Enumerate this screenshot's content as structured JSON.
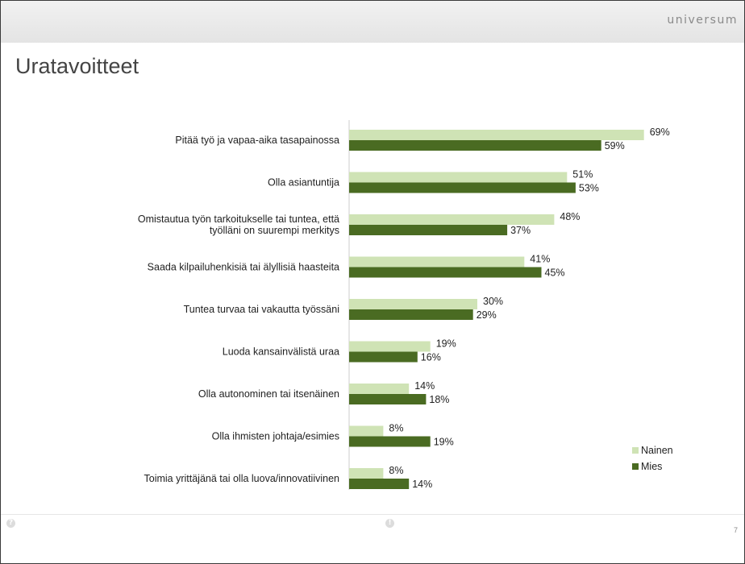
{
  "header": {
    "brand": "universum"
  },
  "slide": {
    "title": "Uratavoitteet",
    "page_number": "7"
  },
  "footer": {
    "left_icon": "help-icon",
    "center_icon": "info-icon"
  },
  "colors": {
    "nainen": "#cfe3b5",
    "mies": "#4a6b22",
    "axis": "#cccccc"
  },
  "chart_data": {
    "type": "bar",
    "orientation": "horizontal",
    "unit": "%",
    "categories": [
      [
        "Pitää työ ja vapaa-aika tasapainossa"
      ],
      [
        "Olla asiantuntija"
      ],
      [
        "Omistautua työn tarkoitukselle tai tuntea, että",
        "työlläni on suurempi merkitys"
      ],
      [
        "Saada kilpailuhenkisiä tai älyllisiä haasteita"
      ],
      [
        "Tuntea turvaa tai vakautta työssäni"
      ],
      [
        "Luoda kansainvälistä uraa"
      ],
      [
        "Olla autonominen tai itsenäinen"
      ],
      [
        "Olla ihmisten johtaja/esimies"
      ],
      [
        "Toimia yrittäjänä tai olla luova/innovatiivinen"
      ]
    ],
    "series": [
      {
        "name": "Nainen",
        "color": "#cfe3b5",
        "values": [
          69,
          51,
          48,
          41,
          30,
          19,
          14,
          8,
          8
        ],
        "labels": [
          "69%",
          "51%",
          "48%",
          "41%",
          "30%",
          "19%",
          "14%",
          "8%",
          "8%"
        ]
      },
      {
        "name": "Mies",
        "color": "#4a6b22",
        "values": [
          59,
          53,
          37,
          45,
          29,
          16,
          18,
          19,
          14
        ],
        "labels": [
          "59%",
          "53%",
          "37%",
          "45%",
          "29%",
          "16%",
          "18%",
          "19%",
          "14%"
        ]
      }
    ],
    "xlim": [
      0,
      70
    ],
    "grid": false,
    "legend_position": "bottom-right"
  }
}
